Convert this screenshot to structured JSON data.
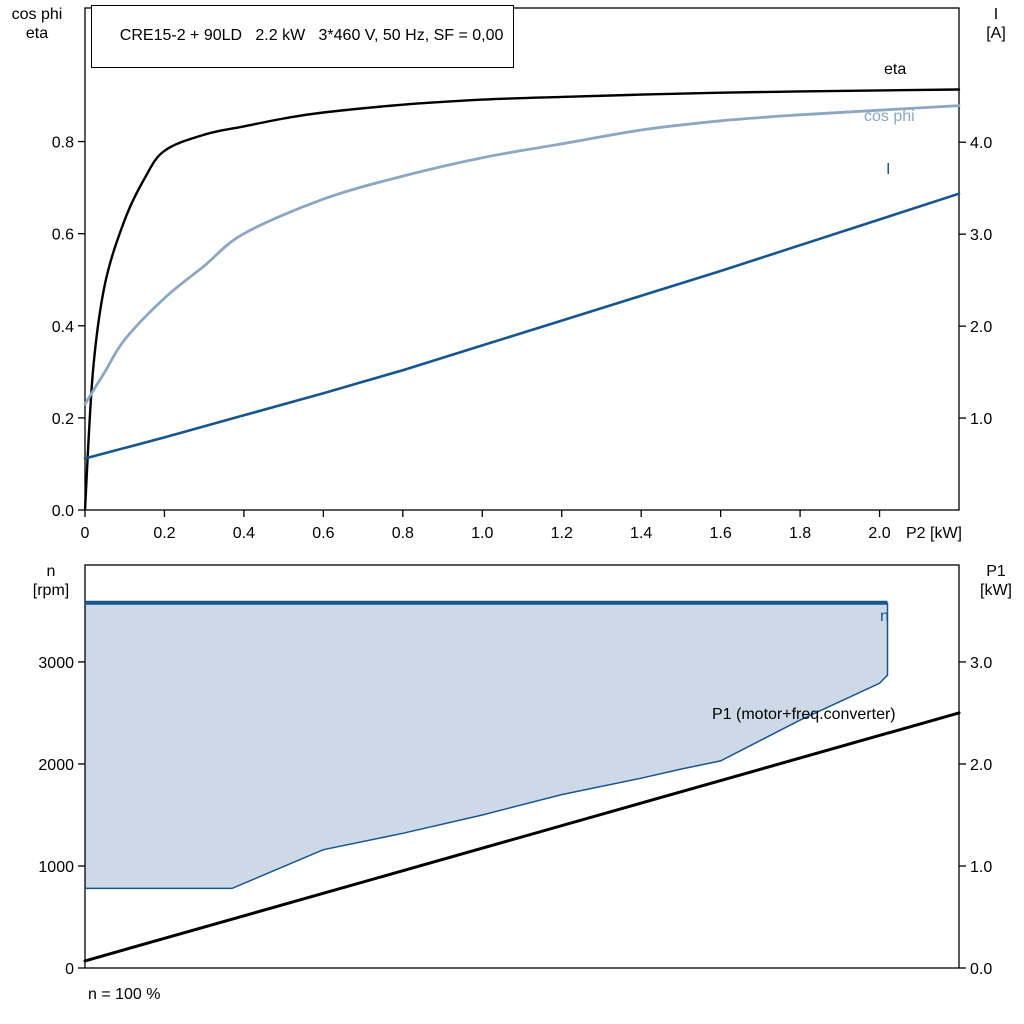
{
  "title": "CRE15-2 + 90LD   2.2 kW   3*460 V, 50 Hz, SF = 0,00",
  "colors": {
    "eta": "#000000",
    "cos_phi": "#8ca7c2",
    "current": "#17558e",
    "speed": "#17558e",
    "speed_fill": "#cdd9e7",
    "p1": "#000000",
    "frame": "#000000"
  },
  "top_chart": {
    "left_axis_title_line1": "cos phi",
    "left_axis_title_line2": "eta",
    "right_axis_title_line1": "I",
    "right_axis_title_line2": "[A]",
    "x_axis_label": "P2 [kW]",
    "curve_labels": {
      "eta": "eta",
      "cos_phi": "cos phi",
      "current": "I"
    }
  },
  "bottom_chart": {
    "left_axis_title_line1": "n",
    "left_axis_title_line2": "[rpm]",
    "right_axis_title_line1": "P1",
    "right_axis_title_line2": "[kW]",
    "curve_labels": {
      "speed": "n",
      "p1": "P1 (motor+freq.converter)"
    },
    "footnote": "n = 100 %"
  },
  "chart_data": [
    {
      "type": "line",
      "title": "CRE15-2 + 90LD   2.2 kW   3*460 V, 50 Hz, SF = 0,00",
      "xlabel": "P2 [kW]",
      "x_range": [
        0,
        2.2
      ],
      "x_ticks": [
        {
          "v": 0,
          "label": "0"
        },
        {
          "v": 0.2,
          "label": "0.2"
        },
        {
          "v": 0.4,
          "label": "0.4"
        },
        {
          "v": 0.6,
          "label": "0.6"
        },
        {
          "v": 0.8,
          "label": "0.8"
        },
        {
          "v": 1.0,
          "label": "1.0"
        },
        {
          "v": 1.2,
          "label": "1.2"
        },
        {
          "v": 1.4,
          "label": "1.4"
        },
        {
          "v": 1.6,
          "label": "1.6"
        },
        {
          "v": 1.8,
          "label": "1.8"
        },
        {
          "v": 2.0,
          "label": "2.0"
        }
      ],
      "y_left": {
        "label": "cos phi / eta",
        "range": [
          0,
          1.09
        ],
        "ticks": [
          {
            "v": 0,
            "label": "0.0"
          },
          {
            "v": 0.2,
            "label": "0.2"
          },
          {
            "v": 0.4,
            "label": "0.4"
          },
          {
            "v": 0.6,
            "label": "0.6"
          },
          {
            "v": 0.8,
            "label": "0.8"
          }
        ]
      },
      "y_right": {
        "label": "I [A]",
        "range": [
          0,
          5.46
        ],
        "ticks": [
          {
            "v": 1,
            "label": "1.0"
          },
          {
            "v": 2,
            "label": "2.0"
          },
          {
            "v": 3,
            "label": "3.0"
          },
          {
            "v": 4,
            "label": "4.0"
          }
        ]
      },
      "series": [
        {
          "name": "eta",
          "axis": "left",
          "color_key": "eta",
          "smooth": true,
          "width": 2.4,
          "points": [
            [
              0,
              0
            ],
            [
              0.02,
              0.3
            ],
            [
              0.05,
              0.49
            ],
            [
              0.1,
              0.63
            ],
            [
              0.15,
              0.72
            ],
            [
              0.2,
              0.78
            ],
            [
              0.3,
              0.815
            ],
            [
              0.4,
              0.833
            ],
            [
              0.5,
              0.85
            ],
            [
              0.6,
              0.863
            ],
            [
              0.8,
              0.88
            ],
            [
              1.0,
              0.891
            ],
            [
              1.2,
              0.897
            ],
            [
              1.4,
              0.902
            ],
            [
              1.6,
              0.906
            ],
            [
              1.8,
              0.909
            ],
            [
              2.0,
              0.911
            ],
            [
              2.2,
              0.913
            ]
          ]
        },
        {
          "name": "cos phi",
          "axis": "left",
          "color_key": "cos_phi",
          "smooth": true,
          "width": 2.8,
          "points": [
            [
              0,
              0.23
            ],
            [
              0.05,
              0.3
            ],
            [
              0.1,
              0.37
            ],
            [
              0.2,
              0.46
            ],
            [
              0.3,
              0.53
            ],
            [
              0.4,
              0.6
            ],
            [
              0.6,
              0.675
            ],
            [
              0.8,
              0.725
            ],
            [
              1.0,
              0.765
            ],
            [
              1.2,
              0.795
            ],
            [
              1.4,
              0.825
            ],
            [
              1.6,
              0.845
            ],
            [
              1.8,
              0.858
            ],
            [
              2.0,
              0.868
            ],
            [
              2.2,
              0.878
            ]
          ]
        },
        {
          "name": "I",
          "axis": "right",
          "color_key": "current",
          "smooth": false,
          "width": 2.6,
          "points": [
            [
              0,
              0.56
            ],
            [
              0.2,
              0.79
            ],
            [
              0.4,
              1.03
            ],
            [
              0.6,
              1.27
            ],
            [
              0.8,
              1.52
            ],
            [
              1.0,
              1.79
            ],
            [
              1.2,
              2.06
            ],
            [
              1.4,
              2.33
            ],
            [
              1.6,
              2.6
            ],
            [
              1.8,
              2.88
            ],
            [
              2.0,
              3.16
            ],
            [
              2.2,
              3.44
            ]
          ]
        }
      ]
    },
    {
      "type": "area",
      "x_range": [
        0,
        2.2
      ],
      "y_left": {
        "label": "n [rpm]",
        "range": [
          0,
          3950
        ],
        "ticks": [
          {
            "v": 0,
            "label": "0"
          },
          {
            "v": 1000,
            "label": "1000"
          },
          {
            "v": 2000,
            "label": "2000"
          },
          {
            "v": 3000,
            "label": "3000"
          }
        ]
      },
      "y_right": {
        "label": "P1 [kW]",
        "range": [
          0,
          3.95
        ],
        "ticks": [
          {
            "v": 0,
            "label": "0.0"
          },
          {
            "v": 1,
            "label": "1.0"
          },
          {
            "v": 2,
            "label": "2.0"
          },
          {
            "v": 3,
            "label": "3.0"
          }
        ]
      },
      "speed_band": {
        "name": "n",
        "n_max_rpm": 3580,
        "x_end": 2.02,
        "n_min_points": [
          [
            0,
            780
          ],
          [
            0.37,
            780
          ],
          [
            0.6,
            1160
          ],
          [
            0.8,
            1320
          ],
          [
            1.0,
            1500
          ],
          [
            1.2,
            1700
          ],
          [
            1.4,
            1860
          ],
          [
            1.5,
            1950
          ],
          [
            1.6,
            2030
          ],
          [
            1.8,
            2430
          ],
          [
            2.0,
            2790
          ],
          [
            2.02,
            2870
          ]
        ]
      },
      "series": [
        {
          "name": "P1 (motor+freq.converter)",
          "axis": "right",
          "color_key": "p1",
          "smooth": false,
          "width": 3,
          "points": [
            [
              0,
              0.07
            ],
            [
              2.2,
              2.5
            ]
          ]
        }
      ],
      "footnote": "n = 100 %"
    }
  ]
}
